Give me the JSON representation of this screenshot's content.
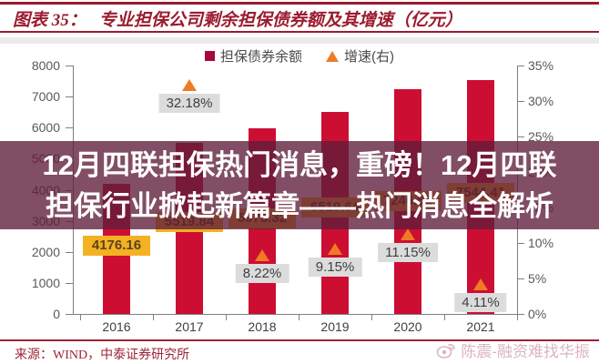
{
  "header": {
    "label": "图表 35：",
    "title": "专业担保公司剩余担保债券额及其增速（亿元）"
  },
  "legend": {
    "bonds": "担保债券余额",
    "growth": "增速(右)"
  },
  "overlay_banner": {
    "line1": "12月四联担保热门消息，重磅！12月四联",
    "line2": "担保行业掀起新篇章——热门消息全解析"
  },
  "footer": {
    "source": "来源：WIND，中泰证券研究所",
    "watermark": "陈震-融资难找华振"
  },
  "colors": {
    "accent_red": "#9c1b2e",
    "bar": "#cd0e33",
    "triangle": "#ee7b24",
    "value_label_bg": "#f4b223",
    "value_label_text": "#5b431c",
    "pct_label_bg": "#dcdcdc",
    "pct_label_text": "#3f3f3f",
    "axis_line": "#7f7f7f",
    "axis_text": "#595959",
    "banner_bg": "rgba(95,28,58,0.78)"
  },
  "chart_data": {
    "type": "bar",
    "title": "专业担保公司剩余担保债券额及其增速（亿元）",
    "legend_position": "top",
    "grid": false,
    "categories": [
      "2016",
      "2017",
      "2018",
      "2019",
      "2020",
      "2021"
    ],
    "series": [
      {
        "name": "担保债券余额",
        "type": "bar",
        "axis": "left",
        "values": [
          4176.16,
          5519.84,
          5973.32,
          6519.64,
          7246.58,
          7544.41
        ],
        "value_labels": [
          "4176.16",
          "5519.84",
          "5973.32",
          "6519.64",
          "7246.58",
          "7544.41"
        ]
      },
      {
        "name": "增速(右)",
        "type": "scatter",
        "marker": "triangle",
        "axis": "right",
        "values": [
          null,
          32.18,
          8.22,
          9.15,
          11.15,
          4.11
        ],
        "value_labels": [
          null,
          "32.18%",
          "8.22%",
          "9.15%",
          "11.15%",
          "4.11%"
        ]
      }
    ],
    "left_axis": {
      "min": 0,
      "max": 8000,
      "step": 1000,
      "ticks": [
        "8000",
        "7000",
        "6000",
        "5000",
        "4000",
        "3000",
        "2000",
        "1000",
        "0"
      ]
    },
    "right_axis": {
      "min": 0,
      "max": 35,
      "step": 5,
      "ticks": [
        "35%",
        "30%",
        "25%",
        "20%",
        "15%",
        "10%",
        "5%",
        "0%"
      ]
    }
  }
}
